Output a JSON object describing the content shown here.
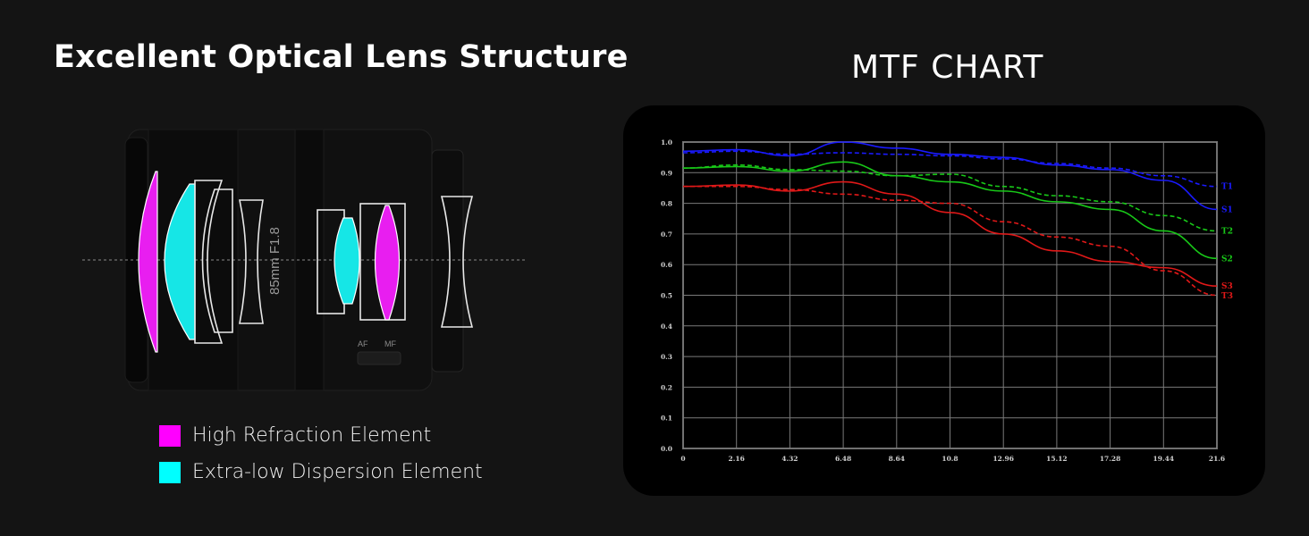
{
  "left": {
    "title": "Excellent Optical Lens Structure",
    "barrel_text": "85mm F1.8",
    "af_label": "AF",
    "mf_label": "MF",
    "colors": {
      "high_refraction": "#e81ef0",
      "extra_low_dispersion": "#16e6e6"
    }
  },
  "legend": [
    {
      "label": "High Refraction Element",
      "color": "#ff00ff"
    },
    {
      "label": "Extra-low Dispersion Element",
      "color": "#00ffff"
    }
  ],
  "right": {
    "title": "MTF CHART"
  },
  "chart_data": {
    "type": "line",
    "title": "MTF CHART",
    "xlim": [
      0,
      21.6
    ],
    "ylim": [
      0,
      1.0
    ],
    "x_ticks": [
      "0",
      "2.16",
      "4.32",
      "6.48",
      "8.64",
      "10.8",
      "12.96",
      "15.12",
      "17.28",
      "19.44",
      "21.6"
    ],
    "y_ticks": [
      "0.0",
      "0.1",
      "0.2",
      "0.3",
      "0.4",
      "0.5",
      "0.6",
      "0.7",
      "0.8",
      "0.9",
      "1.0"
    ],
    "grid": true,
    "x": [
      0,
      2.16,
      4.32,
      6.48,
      8.64,
      10.8,
      12.96,
      15.12,
      17.28,
      19.44,
      21.6
    ],
    "series": [
      {
        "name": "T1",
        "color": "#1a1aff",
        "dash": true,
        "values": [
          0.965,
          0.97,
          0.96,
          0.965,
          0.96,
          0.955,
          0.945,
          0.93,
          0.915,
          0.89,
          0.855
        ]
      },
      {
        "name": "S1",
        "color": "#1a1aff",
        "dash": false,
        "values": [
          0.97,
          0.975,
          0.955,
          1.0,
          0.98,
          0.96,
          0.95,
          0.925,
          0.91,
          0.875,
          0.78
        ]
      },
      {
        "name": "T2",
        "color": "#18c818",
        "dash": true,
        "values": [
          0.915,
          0.925,
          0.91,
          0.905,
          0.89,
          0.895,
          0.855,
          0.825,
          0.805,
          0.76,
          0.71
        ]
      },
      {
        "name": "S2",
        "color": "#18c818",
        "dash": false,
        "values": [
          0.915,
          0.92,
          0.905,
          0.935,
          0.89,
          0.87,
          0.84,
          0.805,
          0.78,
          0.71,
          0.62
        ]
      },
      {
        "name": "S3",
        "color": "#e01818",
        "dash": false,
        "values": [
          0.855,
          0.86,
          0.84,
          0.87,
          0.83,
          0.77,
          0.7,
          0.645,
          0.61,
          0.59,
          0.53
        ]
      },
      {
        "name": "T3",
        "color": "#e01818",
        "dash": true,
        "values": [
          0.855,
          0.855,
          0.845,
          0.83,
          0.81,
          0.8,
          0.74,
          0.69,
          0.66,
          0.58,
          0.5
        ]
      }
    ]
  }
}
